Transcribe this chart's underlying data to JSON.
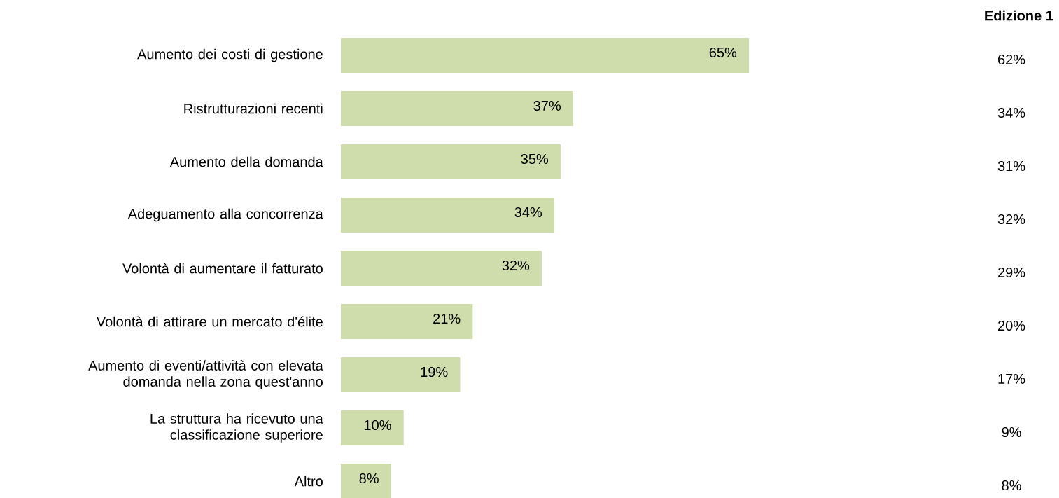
{
  "chart_data": {
    "type": "bar",
    "orientation": "horizontal",
    "categories": [
      "Aumento dei costi di gestione",
      "Ristrutturazioni recenti",
      "Aumento della domanda",
      "Adeguamento alla concorrenza",
      "Volontà di aumentare il fatturato",
      "Volontà di attirare un mercato d'élite",
      "Aumento di eventi/attività con elevata domanda nella zona quest'anno",
      "La struttura ha ricevuto una classificazione superiore",
      "Altro"
    ],
    "values": [
      65,
      37,
      35,
      34,
      32,
      21,
      19,
      10,
      8
    ],
    "value_labels": [
      "65%",
      "37%",
      "35%",
      "34%",
      "32%",
      "21%",
      "19%",
      "10%",
      "8%"
    ],
    "color": "#cfddac",
    "annotations": [
      "Edizione 1",
      "62%",
      "34%",
      "31%",
      "32%",
      "29%",
      "20%",
      "17%",
      "9%",
      "8%"
    ]
  }
}
